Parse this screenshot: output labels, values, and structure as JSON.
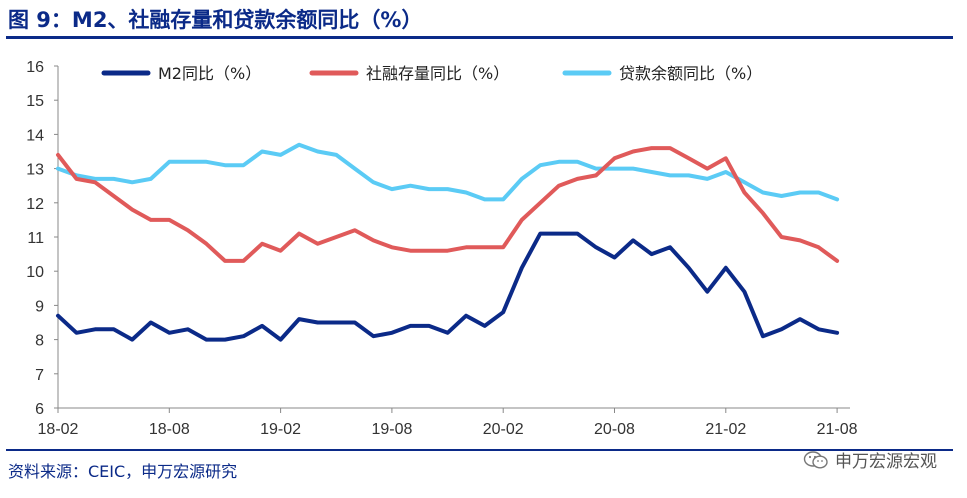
{
  "header": {
    "title": "图 9：M2、社融存量和贷款余额同比（%）"
  },
  "footer": {
    "source": "资料来源：CEIC，申万宏源研究",
    "watermark": "申万宏源宏观",
    "watermark_icon": "wechat-icon"
  },
  "colors": {
    "m2": "#0b2a88",
    "tsf": "#e05a5a",
    "loan": "#5bcbf5",
    "brand": "#0b2a88"
  },
  "chart_data": {
    "type": "line",
    "title": "图 9：M2、社融存量和贷款余额同比（%）",
    "xlabel": "",
    "ylabel": "",
    "ylim": [
      6,
      16
    ],
    "yticks": [
      6,
      7,
      8,
      9,
      10,
      11,
      12,
      13,
      14,
      15,
      16
    ],
    "xtick_labels": [
      "18-02",
      "18-08",
      "19-02",
      "19-08",
      "20-02",
      "20-08",
      "21-02",
      "21-08"
    ],
    "x": [
      "18-02",
      "18-03",
      "18-04",
      "18-05",
      "18-06",
      "18-07",
      "18-08",
      "18-09",
      "18-10",
      "18-11",
      "18-12",
      "19-01",
      "19-02",
      "19-03",
      "19-04",
      "19-05",
      "19-06",
      "19-07",
      "19-08",
      "19-09",
      "19-10",
      "19-11",
      "19-12",
      "20-01",
      "20-02",
      "20-03",
      "20-04",
      "20-05",
      "20-06",
      "20-07",
      "20-08",
      "20-09",
      "20-10",
      "20-11",
      "20-12",
      "21-01",
      "21-02",
      "21-03",
      "21-04",
      "21-05",
      "21-06",
      "21-07",
      "21-08"
    ],
    "series": [
      {
        "name": "M2同比（%）",
        "color": "#0b2a88",
        "values": [
          8.7,
          8.2,
          8.3,
          8.3,
          8.0,
          8.5,
          8.2,
          8.3,
          8.0,
          8.0,
          8.1,
          8.4,
          8.0,
          8.6,
          8.5,
          8.5,
          8.5,
          8.1,
          8.2,
          8.4,
          8.4,
          8.2,
          8.7,
          8.4,
          8.8,
          10.1,
          11.1,
          11.1,
          11.1,
          10.7,
          10.4,
          10.9,
          10.5,
          10.7,
          10.1,
          9.4,
          10.1,
          9.4,
          8.1,
          8.3,
          8.6,
          8.3,
          8.2
        ]
      },
      {
        "name": "社融存量同比（%）",
        "color": "#e05a5a",
        "values": [
          13.4,
          12.7,
          12.6,
          12.2,
          11.8,
          11.5,
          11.5,
          11.2,
          10.8,
          10.3,
          10.3,
          10.8,
          10.6,
          11.1,
          10.8,
          11.0,
          11.2,
          10.9,
          10.7,
          10.6,
          10.6,
          10.6,
          10.7,
          10.7,
          10.7,
          11.5,
          12.0,
          12.5,
          12.7,
          12.8,
          13.3,
          13.5,
          13.6,
          13.6,
          13.3,
          13.0,
          13.3,
          12.3,
          11.7,
          11.0,
          10.9,
          10.7,
          10.3
        ]
      },
      {
        "name": "贷款余额同比（%）",
        "color": "#5bcbf5",
        "values": [
          13.0,
          12.8,
          12.7,
          12.7,
          12.6,
          12.7,
          13.2,
          13.2,
          13.2,
          13.1,
          13.1,
          13.5,
          13.4,
          13.7,
          13.5,
          13.4,
          13.0,
          12.6,
          12.4,
          12.5,
          12.4,
          12.4,
          12.3,
          12.1,
          12.1,
          12.7,
          13.1,
          13.2,
          13.2,
          13.0,
          13.0,
          13.0,
          12.9,
          12.8,
          12.8,
          12.7,
          12.9,
          12.6,
          12.3,
          12.2,
          12.3,
          12.3,
          12.1
        ]
      }
    ],
    "legend": "top",
    "grid": false
  }
}
